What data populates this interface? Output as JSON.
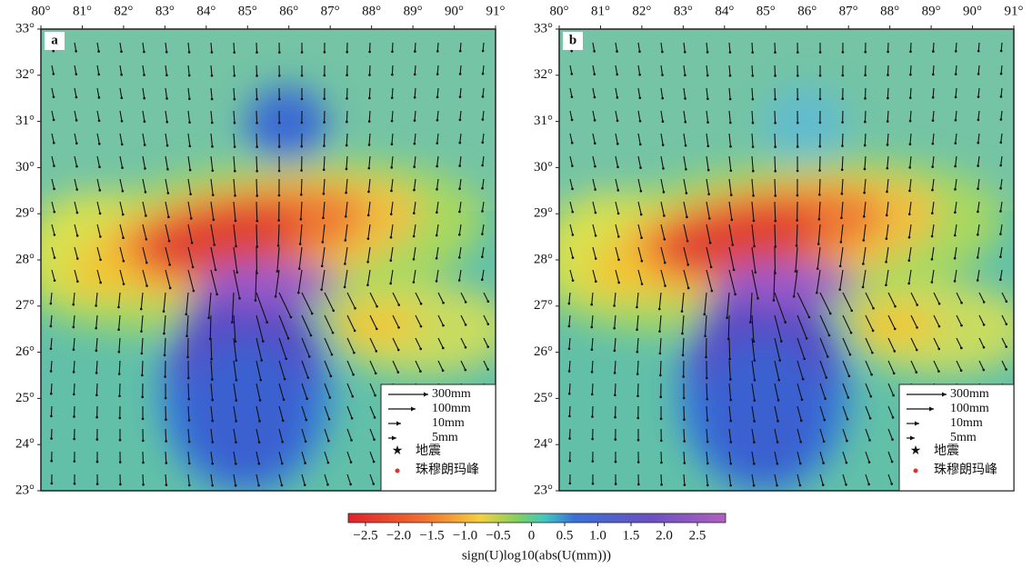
{
  "panels": [
    {
      "label": "a",
      "lon_ticks": [
        "80°",
        "81°",
        "82°",
        "83°",
        "84°",
        "85°",
        "86°",
        "87°",
        "88°",
        "89°",
        "90°",
        "91°"
      ],
      "lat_ticks": [
        "33°",
        "32°",
        "31°",
        "30°",
        "29°",
        "28°",
        "27°",
        "26°",
        "25°",
        "24°",
        "23°"
      ],
      "legend": [
        "300mm",
        "100mm",
        "10mm",
        "5mm",
        "地震",
        "珠穆朗玛峰"
      ]
    },
    {
      "label": "b",
      "lon_ticks": [
        "80°",
        "81°",
        "82°",
        "83°",
        "84°",
        "85°",
        "86°",
        "87°",
        "88°",
        "89°",
        "90°",
        "91°"
      ],
      "lat_ticks": [
        "33°",
        "32°",
        "31°",
        "30°",
        "29°",
        "28°",
        "27°",
        "26°",
        "25°",
        "24°",
        "23°"
      ],
      "legend": [
        "300mm",
        "100mm",
        "10mm",
        "5mm",
        "地震",
        "珠穆朗玛峰"
      ]
    }
  ],
  "colorbar": {
    "ticks": [
      "−2.5",
      "−2.0",
      "−1.5",
      "−1.0",
      "−0.5",
      "0",
      "0.5",
      "1.0",
      "1.5",
      "2.0",
      "2.5"
    ],
    "label": "sign(U)log10(abs(U(mm)))"
  }
}
